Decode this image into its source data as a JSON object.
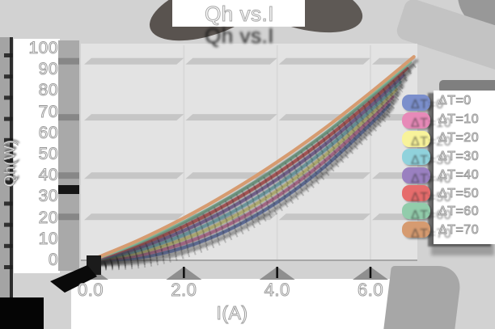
{
  "chart_data": {
    "type": "line",
    "title": "Qh vs.I",
    "xlabel": "I(A)",
    "ylabel": "Qh(W)",
    "xlim": [
      0,
      7.0
    ],
    "ylim": [
      0,
      100
    ],
    "grid": "horizontal-bands",
    "grid_band_values": [
      94,
      67.5,
      40,
      20.5
    ],
    "legend_position": "right",
    "x_ticks": [
      {
        "label": "0.0",
        "value": 0
      },
      {
        "label": "2.0",
        "value": 2
      },
      {
        "label": "4.0",
        "value": 4
      },
      {
        "label": "6.0",
        "value": 6
      }
    ],
    "y_ticks": [
      {
        "label": "0",
        "value": 0
      },
      {
        "label": "10",
        "value": 10
      },
      {
        "label": "20",
        "value": 20
      },
      {
        "label": "30",
        "value": 30
      },
      {
        "label": "40",
        "value": 40
      },
      {
        "label": "50",
        "value": 50
      },
      {
        "label": "60",
        "value": 60
      },
      {
        "label": "70",
        "value": 70
      },
      {
        "label": "80",
        "value": 80
      },
      {
        "label": "90",
        "value": 90
      },
      {
        "label": "100",
        "value": 100
      }
    ],
    "series": [
      {
        "name": "ΔT=0",
        "color": "#7b8fcc",
        "points": [
          [
            0,
            0
          ],
          [
            1,
            1.1
          ],
          [
            2,
            6.0
          ],
          [
            3,
            14.8
          ],
          [
            4,
            27.4
          ],
          [
            5,
            43.9
          ],
          [
            6,
            64.3
          ],
          [
            6.4,
            73.5
          ]
        ]
      },
      {
        "name": "ΔT=10",
        "color": "#e78ab8",
        "points": [
          [
            0,
            0
          ],
          [
            1,
            2.2
          ],
          [
            2,
            8.0
          ],
          [
            3,
            17.3
          ],
          [
            4,
            30.1
          ],
          [
            5,
            46.5
          ],
          [
            6,
            66.4
          ],
          [
            6.48,
            77.2
          ]
        ]
      },
      {
        "name": "ΔT=20",
        "color": "#f8f39b",
        "points": [
          [
            0,
            0
          ],
          [
            1,
            3.4
          ],
          [
            2,
            10.0
          ],
          [
            3,
            19.8
          ],
          [
            4,
            32.8
          ],
          [
            5,
            49.1
          ],
          [
            6,
            68.5
          ],
          [
            6.55,
            80.6
          ]
        ]
      },
      {
        "name": "ΔT=30",
        "color": "#90d2dc",
        "points": [
          [
            0,
            0
          ],
          [
            1,
            4.5
          ],
          [
            2,
            12.0
          ],
          [
            3,
            22.3
          ],
          [
            4,
            35.5
          ],
          [
            5,
            51.7
          ],
          [
            6,
            70.7
          ],
          [
            6.63,
            84.1
          ]
        ]
      },
      {
        "name": "ΔT=40",
        "color": "#9a80c0",
        "points": [
          [
            0,
            0
          ],
          [
            1,
            5.7
          ],
          [
            2,
            14.0
          ],
          [
            3,
            24.8
          ],
          [
            4,
            38.3
          ],
          [
            5,
            54.3
          ],
          [
            6,
            72.8
          ],
          [
            6.7,
            87.3
          ]
        ]
      },
      {
        "name": "ΔT=50",
        "color": "#e66c6c",
        "points": [
          [
            0,
            0
          ],
          [
            1,
            6.9
          ],
          [
            2,
            16.0
          ],
          [
            3,
            27.4
          ],
          [
            4,
            41.0
          ],
          [
            5,
            56.8
          ],
          [
            6,
            74.9
          ],
          [
            6.78,
            90.6
          ]
        ]
      },
      {
        "name": "ΔT=60",
        "color": "#92ccab",
        "points": [
          [
            0,
            0
          ],
          [
            1,
            8.0
          ],
          [
            2,
            18.0
          ],
          [
            3,
            29.9
          ],
          [
            4,
            43.6
          ],
          [
            5,
            59.4
          ],
          [
            6,
            77.1
          ],
          [
            6.85,
            93.6
          ]
        ]
      },
      {
        "name": "ΔT=70",
        "color": "#d69b70",
        "points": [
          [
            0,
            0
          ],
          [
            1,
            9.2
          ],
          [
            2,
            20.0
          ],
          [
            3,
            32.4
          ],
          [
            4,
            46.4
          ],
          [
            5,
            62.0
          ],
          [
            6,
            79.2
          ],
          [
            6.93,
            96.1
          ]
        ]
      }
    ]
  }
}
